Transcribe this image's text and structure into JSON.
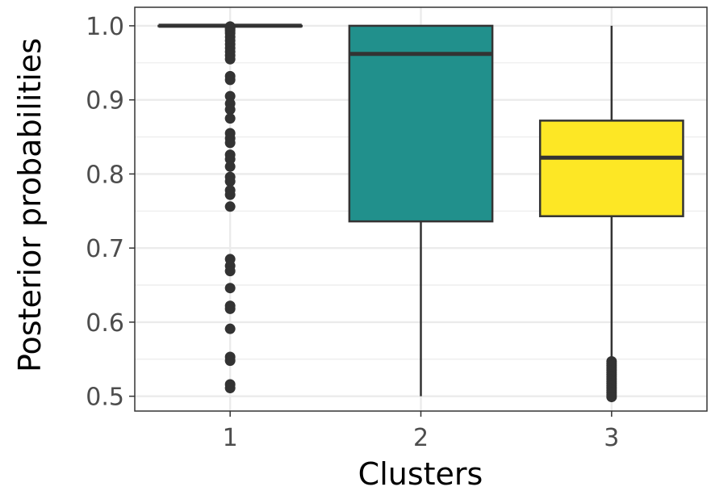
{
  "chart_data": {
    "type": "boxplot",
    "xlabel": "Clusters",
    "ylabel": "Posterior probabilities",
    "ylim": [
      0.48,
      1.025
    ],
    "y_ticks": [
      0.5,
      0.6,
      0.7,
      0.8,
      0.9,
      1.0
    ],
    "y_tick_labels": [
      "0.5",
      "0.6",
      "0.7",
      "0.8",
      "0.9",
      "1.0"
    ],
    "y_minor_ticks": [
      0.55,
      0.65,
      0.75,
      0.85,
      0.95
    ],
    "categories": [
      "1",
      "2",
      "3"
    ],
    "grid": true,
    "legend": "none",
    "boxes": [
      {
        "category": "1",
        "fill": "#440154",
        "min": 1.0,
        "q1": 1.0,
        "median": 1.0,
        "q3": 1.0,
        "max": 1.0,
        "outliers": [
          0.999,
          0.997,
          0.995,
          0.993,
          0.99,
          0.985,
          0.98,
          0.975,
          0.97,
          0.965,
          0.96,
          0.955,
          0.932,
          0.927,
          0.905,
          0.895,
          0.887,
          0.875,
          0.855,
          0.848,
          0.842,
          0.826,
          0.82,
          0.81,
          0.796,
          0.79,
          0.778,
          0.772,
          0.756,
          0.685,
          0.676,
          0.669,
          0.646,
          0.622,
          0.618,
          0.591,
          0.553,
          0.548,
          0.516,
          0.511
        ]
      },
      {
        "category": "2",
        "fill": "#21908C",
        "min": 0.5,
        "q1": 0.736,
        "median": 0.962,
        "q3": 1.0,
        "max": 1.0,
        "outliers": []
      },
      {
        "category": "3",
        "fill": "#FDE725",
        "min": 0.548,
        "q1": 0.743,
        "median": 0.822,
        "q3": 0.872,
        "max": 1.0,
        "outliers": [
          0.547,
          0.544,
          0.541,
          0.538,
          0.535,
          0.532,
          0.529,
          0.526,
          0.523,
          0.52,
          0.517,
          0.514,
          0.511,
          0.508,
          0.505,
          0.502,
          0.499
        ]
      }
    ]
  }
}
